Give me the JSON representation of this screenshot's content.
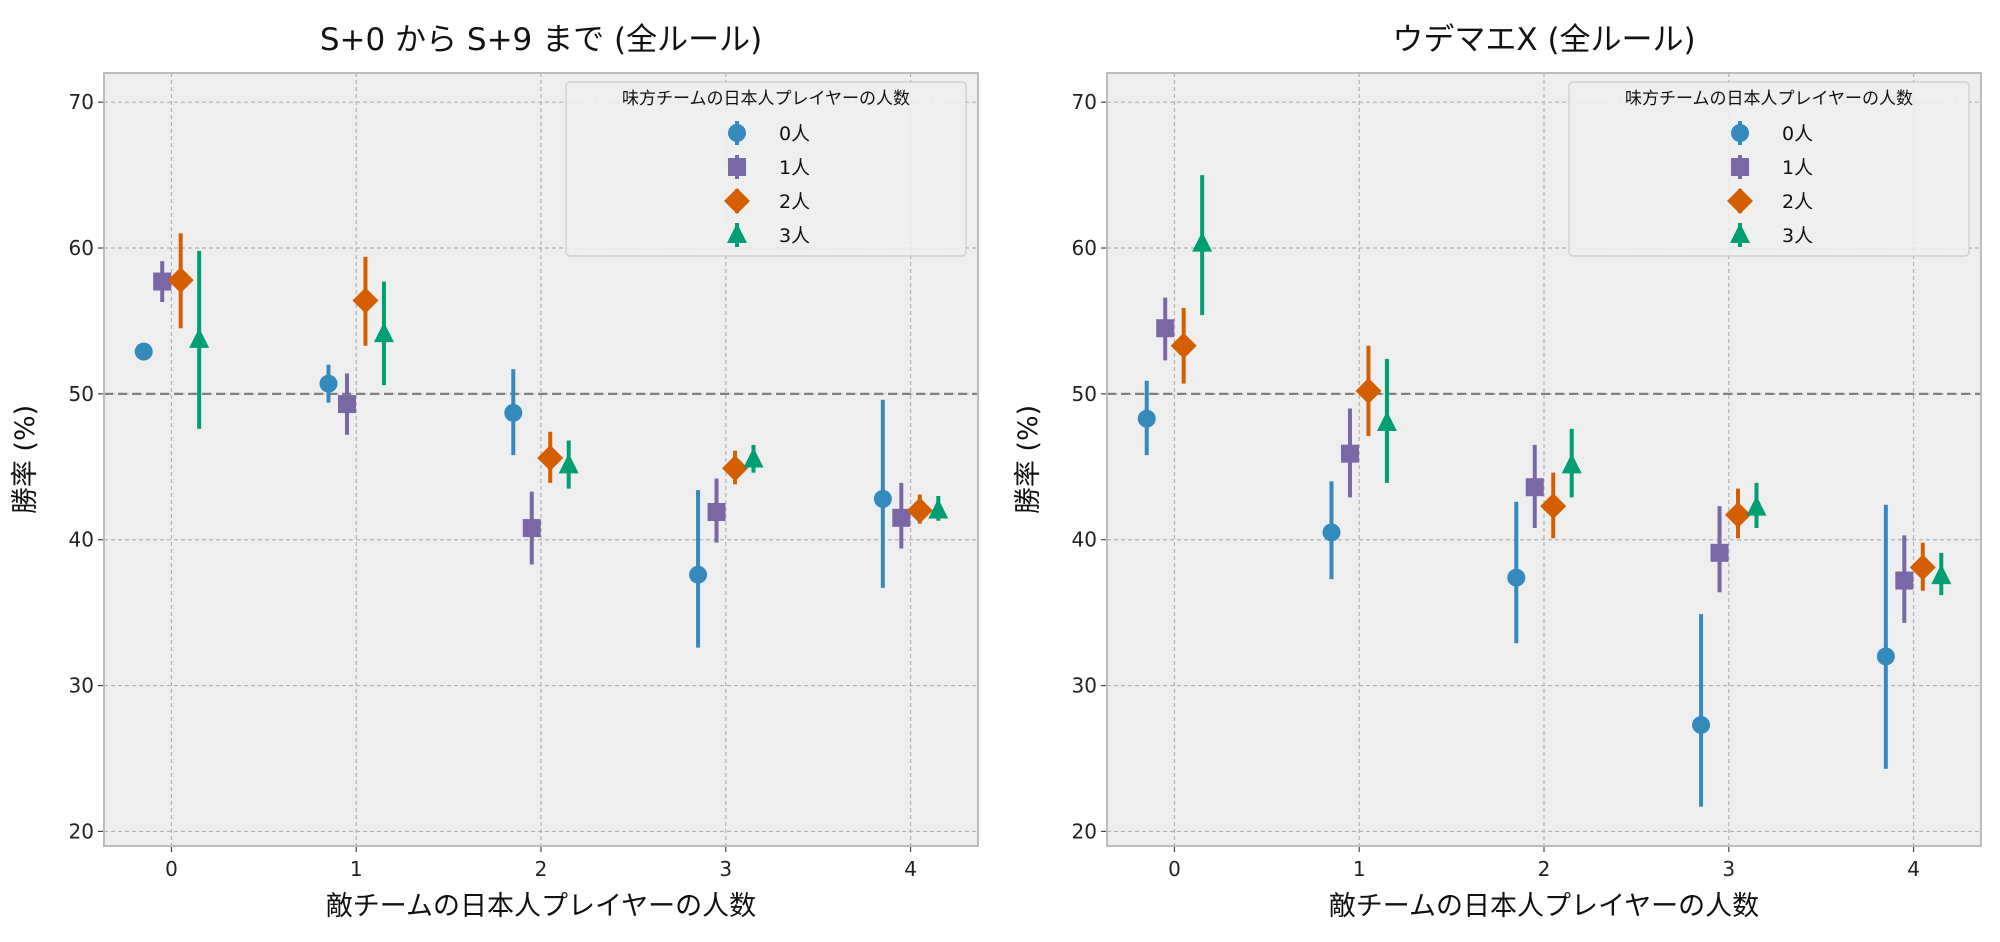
{
  "colors": {
    "background": "#eeeeee",
    "frame": "#bcbcbc",
    "grid": "#b2b2b2",
    "reference_line": "#808080",
    "series": [
      "#348abd",
      "#7a68a6",
      "#d55e00",
      "#009e73"
    ]
  },
  "chart_data": [
    {
      "type": "scatter",
      "title": "S+0 から S+9 まで (全ルール)",
      "xlabel": "敵チームの日本人プレイヤーの人数",
      "ylabel": "勝率 (%)",
      "categories": [
        0,
        1,
        2,
        3,
        4
      ],
      "xticks": [
        "0",
        "1",
        "2",
        "3",
        "4"
      ],
      "yticks": [
        20,
        30,
        40,
        50,
        60,
        70
      ],
      "ylim": [
        19,
        72
      ],
      "grid": true,
      "reference_line": 50,
      "legend": {
        "title": "味方チームの日本人プレイヤーの人数",
        "placement": "top-right"
      },
      "series": [
        {
          "name": "0人",
          "marker": "circle",
          "values": [
            52.9,
            50.7,
            48.7,
            37.6,
            42.8
          ],
          "lower": [
            52.4,
            49.4,
            45.8,
            32.6,
            36.7
          ],
          "upper": [
            53.4,
            52.0,
            51.7,
            43.4,
            49.6
          ]
        },
        {
          "name": "1人",
          "marker": "square",
          "values": [
            57.7,
            49.3,
            40.8,
            41.9,
            41.5
          ],
          "lower": [
            56.3,
            47.2,
            38.3,
            39.8,
            39.4
          ],
          "upper": [
            59.1,
            51.4,
            43.3,
            44.2,
            43.9
          ]
        },
        {
          "name": "2人",
          "marker": "diamond",
          "values": [
            57.8,
            56.4,
            45.6,
            44.9,
            42.0
          ],
          "lower": [
            54.5,
            53.3,
            43.9,
            43.8,
            41.1
          ],
          "upper": [
            61.0,
            59.4,
            47.4,
            46.1,
            43.1
          ]
        },
        {
          "name": "3人",
          "marker": "triangle",
          "values": [
            53.7,
            54.1,
            45.1,
            45.5,
            42.0
          ],
          "lower": [
            47.6,
            50.6,
            43.5,
            44.6,
            41.3
          ],
          "upper": [
            59.8,
            57.7,
            46.8,
            46.5,
            43.0
          ]
        }
      ]
    },
    {
      "type": "scatter",
      "title": "ウデマエX (全ルール)",
      "xlabel": "敵チームの日本人プレイヤーの人数",
      "ylabel": "勝率 (%)",
      "categories": [
        0,
        1,
        2,
        3,
        4
      ],
      "xticks": [
        "0",
        "1",
        "2",
        "3",
        "4"
      ],
      "yticks": [
        20,
        30,
        40,
        50,
        60,
        70
      ],
      "ylim": [
        19,
        72
      ],
      "grid": true,
      "reference_line": 50,
      "legend": {
        "title": "味方チームの日本人プレイヤーの人数",
        "placement": "top-right"
      },
      "series": [
        {
          "name": "0人",
          "marker": "circle",
          "values": [
            48.3,
            40.5,
            37.4,
            27.3,
            32.0
          ],
          "lower": [
            45.8,
            37.3,
            32.9,
            21.7,
            24.3
          ],
          "upper": [
            50.9,
            44.0,
            42.6,
            34.9,
            42.4
          ]
        },
        {
          "name": "1人",
          "marker": "square",
          "values": [
            54.5,
            45.9,
            43.6,
            39.1,
            37.2
          ],
          "lower": [
            52.3,
            42.9,
            40.8,
            36.4,
            34.3
          ],
          "upper": [
            56.6,
            49.0,
            46.5,
            42.3,
            40.3
          ]
        },
        {
          "name": "2人",
          "marker": "diamond",
          "values": [
            53.3,
            50.2,
            42.3,
            41.7,
            38.1
          ],
          "lower": [
            50.7,
            47.1,
            40.1,
            40.1,
            36.5
          ],
          "upper": [
            55.9,
            53.3,
            44.6,
            43.5,
            39.8
          ]
        },
        {
          "name": "3人",
          "marker": "triangle",
          "values": [
            60.3,
            48.0,
            45.1,
            42.2,
            37.5
          ],
          "lower": [
            55.4,
            43.9,
            42.9,
            40.8,
            36.2
          ],
          "upper": [
            65.0,
            52.4,
            47.6,
            43.9,
            39.1
          ]
        }
      ]
    }
  ]
}
